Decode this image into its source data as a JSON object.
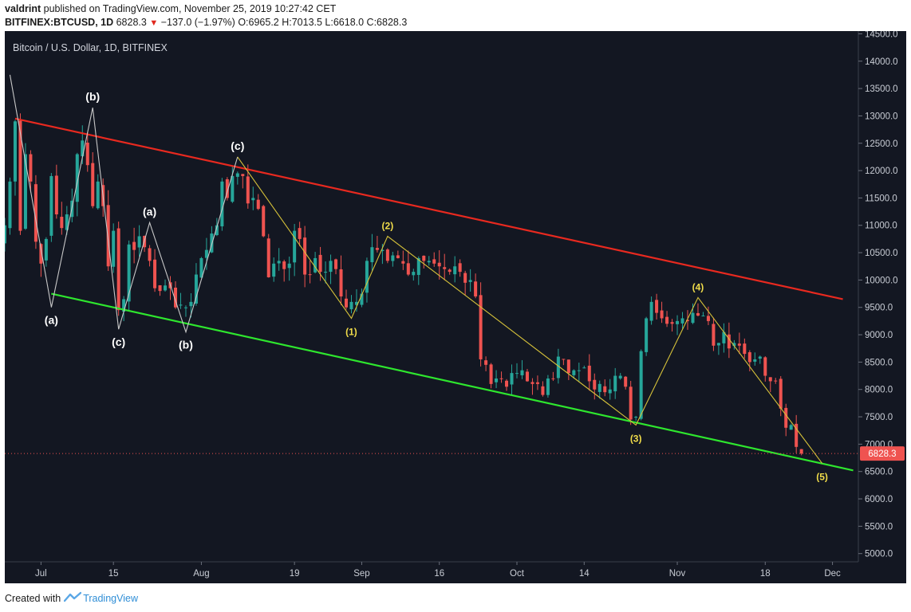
{
  "header": {
    "user": "valdrint",
    "published_text": " published on TradingView.com, November 25, 2019 10:27:42 CET",
    "symbol": "BITFINEX:BTCUSD, 1D",
    "price": "6828.3",
    "change": "−137.0 (−1.97%)",
    "ohlc": "O:6965.2 H:7013.5 L:6618.0 C:6828.3"
  },
  "footer": {
    "created_with": "Created with",
    "brand": "TradingView"
  },
  "colors": {
    "background": "#131722",
    "up": "#26a69a",
    "down": "#ef5350",
    "resistance": "#e8291f",
    "support": "#2ee62e",
    "waves": "#d6c23a",
    "corrective": "#c8c8c8",
    "axis_text": "#c9cdd5"
  },
  "chart_data": {
    "type": "candlestick",
    "title": "Bitcoin / U.S. Dollar, 1D, BITFINEX",
    "y_ticks": [
      5000,
      5500,
      6000,
      6500,
      7000,
      7500,
      8000,
      8500,
      9000,
      9500,
      10000,
      10500,
      11000,
      11500,
      12000,
      12500,
      13000,
      13500,
      14000,
      14500
    ],
    "ylim": [
      4850,
      14550
    ],
    "x_range": [
      "2019-06-24",
      "2019-12-06"
    ],
    "x_ticks": [
      {
        "label": "Jul",
        "date": "2019-07-01"
      },
      {
        "label": "15",
        "date": "2019-07-15"
      },
      {
        "label": "Aug",
        "date": "2019-08-01"
      },
      {
        "label": "19",
        "date": "2019-08-19"
      },
      {
        "label": "Sep",
        "date": "2019-09-01"
      },
      {
        "label": "16",
        "date": "2019-09-16"
      },
      {
        "label": "Oct",
        "date": "2019-10-01"
      },
      {
        "label": "14",
        "date": "2019-10-14"
      },
      {
        "label": "Nov",
        "date": "2019-11-01"
      },
      {
        "label": "18",
        "date": "2019-11-18"
      },
      {
        "label": "Dec",
        "date": "2019-12-01"
      }
    ],
    "last_price": 6828.3,
    "closes": [
      [
        "2019-06-24",
        11000
      ],
      [
        "2019-06-25",
        11800
      ],
      [
        "2019-06-26",
        12900
      ],
      [
        "2019-06-27",
        10900
      ],
      [
        "2019-06-28",
        12300
      ],
      [
        "2019-06-29",
        11800
      ],
      [
        "2019-06-30",
        10700
      ],
      [
        "2019-07-01",
        10300
      ],
      [
        "2019-07-02",
        10750
      ],
      [
        "2019-07-03",
        11900
      ],
      [
        "2019-07-04",
        11200
      ],
      [
        "2019-07-05",
        10950
      ],
      [
        "2019-07-06",
        11200
      ],
      [
        "2019-07-07",
        11450
      ],
      [
        "2019-07-08",
        12300
      ],
      [
        "2019-07-09",
        12550
      ],
      [
        "2019-07-10",
        12100
      ],
      [
        "2019-07-11",
        11350
      ],
      [
        "2019-07-12",
        11800
      ],
      [
        "2019-07-13",
        11350
      ],
      [
        "2019-07-14",
        10250
      ],
      [
        "2019-07-15",
        10900
      ],
      [
        "2019-07-16",
        9450
      ],
      [
        "2019-07-17",
        9650
      ],
      [
        "2019-07-18",
        10650
      ],
      [
        "2019-07-19",
        10550
      ],
      [
        "2019-07-20",
        10800
      ],
      [
        "2019-07-21",
        10600
      ],
      [
        "2019-07-22",
        10350
      ],
      [
        "2019-07-23",
        9850
      ],
      [
        "2019-07-24",
        9800
      ],
      [
        "2019-07-25",
        9900
      ],
      [
        "2019-07-26",
        9850
      ],
      [
        "2019-07-27",
        9500
      ],
      [
        "2019-07-28",
        9550
      ],
      [
        "2019-07-29",
        9500
      ],
      [
        "2019-07-30",
        9600
      ],
      [
        "2019-07-31",
        10100
      ],
      [
        "2019-08-01",
        10400
      ],
      [
        "2019-08-02",
        10550
      ],
      [
        "2019-08-03",
        10850
      ],
      [
        "2019-08-04",
        11000
      ],
      [
        "2019-08-05",
        11800
      ],
      [
        "2019-08-06",
        11500
      ],
      [
        "2019-08-07",
        11900
      ],
      [
        "2019-08-08",
        11950
      ],
      [
        "2019-08-09",
        11900
      ],
      [
        "2019-08-10",
        11400
      ],
      [
        "2019-08-11",
        11500
      ],
      [
        "2019-08-12",
        11300
      ],
      [
        "2019-08-13",
        10800
      ],
      [
        "2019-08-14",
        10050
      ],
      [
        "2019-08-15",
        10300
      ],
      [
        "2019-08-16",
        10350
      ],
      [
        "2019-08-17",
        10200
      ],
      [
        "2019-08-18",
        10300
      ],
      [
        "2019-08-19",
        10900
      ],
      [
        "2019-08-20",
        10750
      ],
      [
        "2019-08-21",
        10100
      ],
      [
        "2019-08-22",
        10100
      ],
      [
        "2019-08-23",
        10400
      ],
      [
        "2019-08-24",
        10150
      ],
      [
        "2019-08-25",
        10150
      ],
      [
        "2019-08-26",
        10350
      ],
      [
        "2019-08-27",
        10200
      ],
      [
        "2019-08-28",
        9700
      ],
      [
        "2019-08-29",
        9500
      ],
      [
        "2019-08-30",
        9600
      ],
      [
        "2019-08-31",
        9600
      ],
      [
        "2019-09-01",
        9750
      ],
      [
        "2019-09-02",
        10350
      ],
      [
        "2019-09-03",
        10600
      ],
      [
        "2019-09-04",
        10550
      ],
      [
        "2019-09-05",
        10550
      ],
      [
        "2019-09-06",
        10350
      ],
      [
        "2019-09-07",
        10450
      ],
      [
        "2019-09-08",
        10400
      ],
      [
        "2019-09-09",
        10300
      ],
      [
        "2019-09-10",
        10100
      ],
      [
        "2019-09-11",
        10150
      ],
      [
        "2019-09-12",
        10400
      ],
      [
        "2019-09-13",
        10350
      ],
      [
        "2019-09-14",
        10350
      ],
      [
        "2019-09-15",
        10300
      ],
      [
        "2019-09-16",
        10250
      ],
      [
        "2019-09-17",
        10200
      ],
      [
        "2019-09-18",
        10150
      ],
      [
        "2019-09-19",
        10250
      ],
      [
        "2019-09-20",
        10150
      ],
      [
        "2019-09-21",
        9950
      ],
      [
        "2019-09-22",
        10000
      ],
      [
        "2019-09-23",
        9700
      ],
      [
        "2019-09-24",
        8550
      ],
      [
        "2019-09-25",
        8450
      ],
      [
        "2019-09-26",
        8100
      ],
      [
        "2019-09-27",
        8200
      ],
      [
        "2019-09-28",
        8200
      ],
      [
        "2019-09-29",
        8050
      ],
      [
        "2019-09-30",
        8300
      ],
      [
        "2019-10-01",
        8300
      ],
      [
        "2019-10-02",
        8350
      ],
      [
        "2019-10-03",
        8150
      ],
      [
        "2019-10-04",
        8100
      ],
      [
        "2019-10-05",
        8100
      ],
      [
        "2019-10-06",
        7900
      ],
      [
        "2019-10-07",
        8200
      ],
      [
        "2019-10-08",
        8200
      ],
      [
        "2019-10-09",
        8600
      ],
      [
        "2019-10-10",
        8550
      ],
      [
        "2019-10-11",
        8300
      ],
      [
        "2019-10-12",
        8350
      ],
      [
        "2019-10-13",
        8350
      ],
      [
        "2019-10-14",
        8400
      ],
      [
        "2019-10-15",
        8150
      ],
      [
        "2019-10-16",
        8000
      ],
      [
        "2019-10-17",
        8100
      ],
      [
        "2019-10-18",
        7950
      ],
      [
        "2019-10-19",
        8000
      ],
      [
        "2019-10-20",
        8250
      ],
      [
        "2019-10-21",
        8250
      ],
      [
        "2019-10-22",
        8050
      ],
      [
        "2019-10-23",
        7450
      ],
      [
        "2019-10-24",
        7500
      ],
      [
        "2019-10-25",
        8700
      ],
      [
        "2019-10-26",
        9300
      ],
      [
        "2019-10-27",
        9600
      ],
      [
        "2019-10-28",
        9400
      ],
      [
        "2019-10-29",
        9300
      ],
      [
        "2019-10-30",
        9200
      ],
      [
        "2019-10-31",
        9200
      ],
      [
        "2019-11-01",
        9250
      ],
      [
        "2019-11-02",
        9300
      ],
      [
        "2019-11-03",
        9250
      ],
      [
        "2019-11-04",
        9400
      ],
      [
        "2019-11-05",
        9350
      ],
      [
        "2019-11-06",
        9350
      ],
      [
        "2019-11-07",
        9250
      ],
      [
        "2019-11-08",
        8800
      ],
      [
        "2019-11-09",
        8850
      ],
      [
        "2019-11-10",
        9050
      ],
      [
        "2019-11-11",
        8750
      ],
      [
        "2019-11-12",
        8850
      ],
      [
        "2019-11-13",
        8800
      ],
      [
        "2019-11-14",
        8650
      ],
      [
        "2019-11-15",
        8500
      ],
      [
        "2019-11-16",
        8550
      ],
      [
        "2019-11-17",
        8600
      ],
      [
        "2019-11-18",
        8250
      ],
      [
        "2019-11-19",
        8150
      ],
      [
        "2019-11-20",
        8150
      ],
      [
        "2019-11-21",
        7650
      ],
      [
        "2019-11-22",
        7300
      ],
      [
        "2019-11-23",
        7350
      ],
      [
        "2019-11-24",
        6950
      ],
      [
        "2019-11-25",
        6828.3
      ]
    ],
    "trendlines": [
      {
        "name": "resistance",
        "from": [
          "2019-06-26",
          12950
        ],
        "to": [
          "2019-12-03",
          9650
        ]
      },
      {
        "name": "support",
        "from": [
          "2019-07-03",
          9750
        ],
        "to": [
          "2019-12-05",
          6520
        ]
      }
    ],
    "corrective_wave": [
      [
        "2019-06-25",
        13750
      ],
      [
        "2019-07-03",
        9500
      ],
      [
        "2019-07-11",
        13150
      ],
      [
        "2019-07-16",
        9100
      ],
      [
        "2019-07-22",
        11050
      ],
      [
        "2019-07-29",
        9050
      ],
      [
        "2019-08-08",
        12250
      ]
    ],
    "impulse_wave": [
      [
        "2019-08-08",
        12250
      ],
      [
        "2019-08-30",
        9300
      ],
      [
        "2019-09-06",
        10800
      ],
      [
        "2019-10-24",
        7350
      ],
      [
        "2019-11-05",
        9680
      ],
      [
        "2019-11-29",
        6650
      ]
    ],
    "annotations": [
      {
        "label": "(b)",
        "date": "2019-07-11",
        "price": 13150,
        "pos": "above",
        "color": "white"
      },
      {
        "label": "(a)",
        "date": "2019-07-03",
        "price": 9500,
        "pos": "below",
        "color": "white"
      },
      {
        "label": "(c)",
        "date": "2019-07-16",
        "price": 9100,
        "pos": "below",
        "color": "white"
      },
      {
        "label": "(a)",
        "date": "2019-07-22",
        "price": 11050,
        "pos": "above",
        "color": "white"
      },
      {
        "label": "(b)",
        "date": "2019-07-29",
        "price": 9050,
        "pos": "below",
        "color": "white"
      },
      {
        "label": "(c)",
        "date": "2019-08-08",
        "price": 12250,
        "pos": "above",
        "color": "white"
      },
      {
        "label": "(1)",
        "date": "2019-08-30",
        "price": 9300,
        "pos": "below",
        "color": "yellow"
      },
      {
        "label": "(2)",
        "date": "2019-09-06",
        "price": 10800,
        "pos": "above",
        "color": "yellow"
      },
      {
        "label": "(3)",
        "date": "2019-10-24",
        "price": 7350,
        "pos": "below",
        "color": "yellow"
      },
      {
        "label": "(4)",
        "date": "2019-11-05",
        "price": 9680,
        "pos": "above",
        "color": "yellow"
      },
      {
        "label": "(5)",
        "date": "2019-11-29",
        "price": 6650,
        "pos": "below",
        "color": "yellow"
      }
    ]
  }
}
